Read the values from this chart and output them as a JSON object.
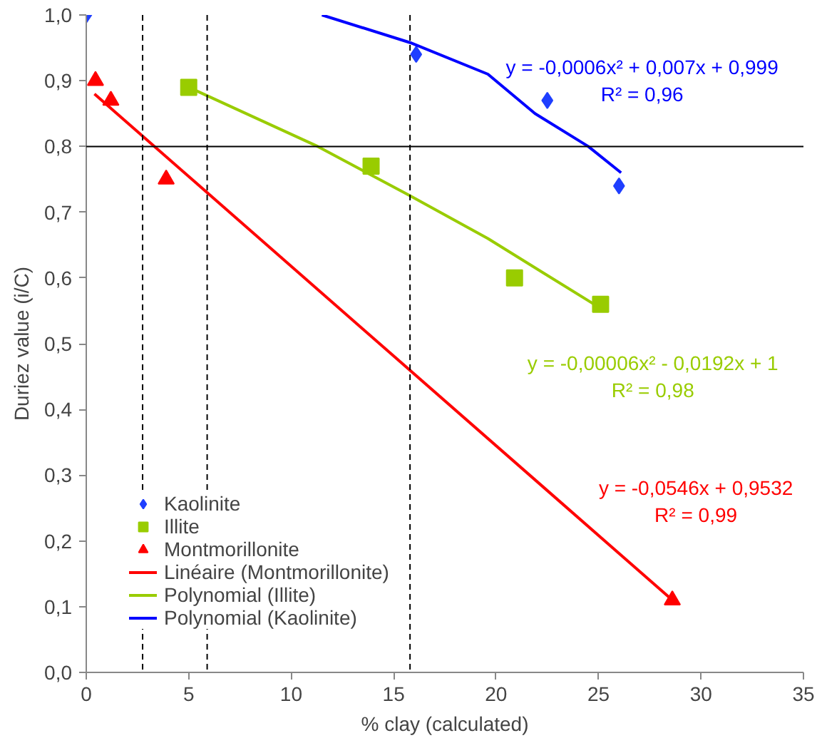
{
  "chart_data": {
    "type": "scatter",
    "xlabel": "% clay (calculated)",
    "ylabel": "Duriez value (i/C)",
    "xlim": [
      0,
      35
    ],
    "ylim": [
      0,
      1
    ],
    "xticks": [
      0,
      5,
      10,
      15,
      20,
      25,
      30,
      35
    ],
    "yticks": [
      {
        "value": 0,
        "label": "0,0"
      },
      {
        "value": 0.1,
        "label": "0,1"
      },
      {
        "value": 0.2,
        "label": "0,2"
      },
      {
        "value": 0.3,
        "label": "0,3"
      },
      {
        "value": 0.4,
        "label": "0,4"
      },
      {
        "value": 0.5,
        "label": "0,5"
      },
      {
        "value": 0.6,
        "label": "0,6"
      },
      {
        "value": 0.7,
        "label": "0,7"
      },
      {
        "value": 0.8,
        "label": "0,8"
      },
      {
        "value": 0.9,
        "label": "0,9"
      },
      {
        "value": 1,
        "label": "1,0"
      }
    ],
    "grid": false,
    "legend": "bottom left",
    "series": [
      {
        "name": "Kaolinite",
        "marker": "diamond",
        "color": "#1f3fff",
        "x": [
          0,
          16.1,
          22.5,
          26.0
        ],
        "values": [
          1.0,
          0.94,
          0.87,
          0.74
        ]
      },
      {
        "name": "Illite",
        "marker": "square",
        "color": "#99cc00",
        "x": [
          5,
          13.9,
          20.9,
          25.1
        ],
        "values": [
          0.89,
          0.77,
          0.6,
          0.56
        ]
      },
      {
        "name": "Montmorillonite",
        "marker": "triangle",
        "color": "#ff0000",
        "x": [
          0.45,
          1.2,
          3.9,
          28.6
        ],
        "values": [
          0.9,
          0.87,
          0.75,
          0.11
        ]
      },
      {
        "name": "Linéaire (Montmorillonite)",
        "type": "line",
        "color": "#ff0000",
        "x": [
          0.4,
          28.6
        ],
        "values": [
          0.88,
          0.11
        ]
      },
      {
        "name": "Polynomial (Illite)",
        "type": "line",
        "color": "#99cc00",
        "x": [
          5,
          11.3,
          15.8,
          19.6,
          25.3
        ],
        "values": [
          0.89,
          0.8,
          0.725,
          0.66,
          0.55
        ]
      },
      {
        "name": "Polynomial (Kaolinite)",
        "type": "line",
        "color": "#0000ff",
        "x": [
          11.5,
          15.8,
          19.6,
          21.9,
          24.5,
          26.1
        ],
        "values": [
          1.0,
          0.958,
          0.91,
          0.85,
          0.8,
          0.76
        ]
      }
    ],
    "ref_lines": [
      {
        "axis": "y",
        "value": 0.8,
        "color": "#000000",
        "line_style": "solid"
      },
      {
        "axis": "x",
        "value": 2.75,
        "color": "#000000",
        "line_style": "dashed"
      },
      {
        "axis": "x",
        "value": 5.9,
        "color": "#000000",
        "line_style": "dashed"
      },
      {
        "axis": "x",
        "value": 15.8,
        "color": "#000000",
        "line_style": "dashed"
      }
    ],
    "annotations": [
      "y = -0,0546x + 0,9532\nR² = 0,99",
      "y = -0,00006x² - 0,0192x + 1\nR² = 0,98",
      "y = -0,0006x² + 0,007x + 0,999\nR² = 0,96"
    ]
  }
}
